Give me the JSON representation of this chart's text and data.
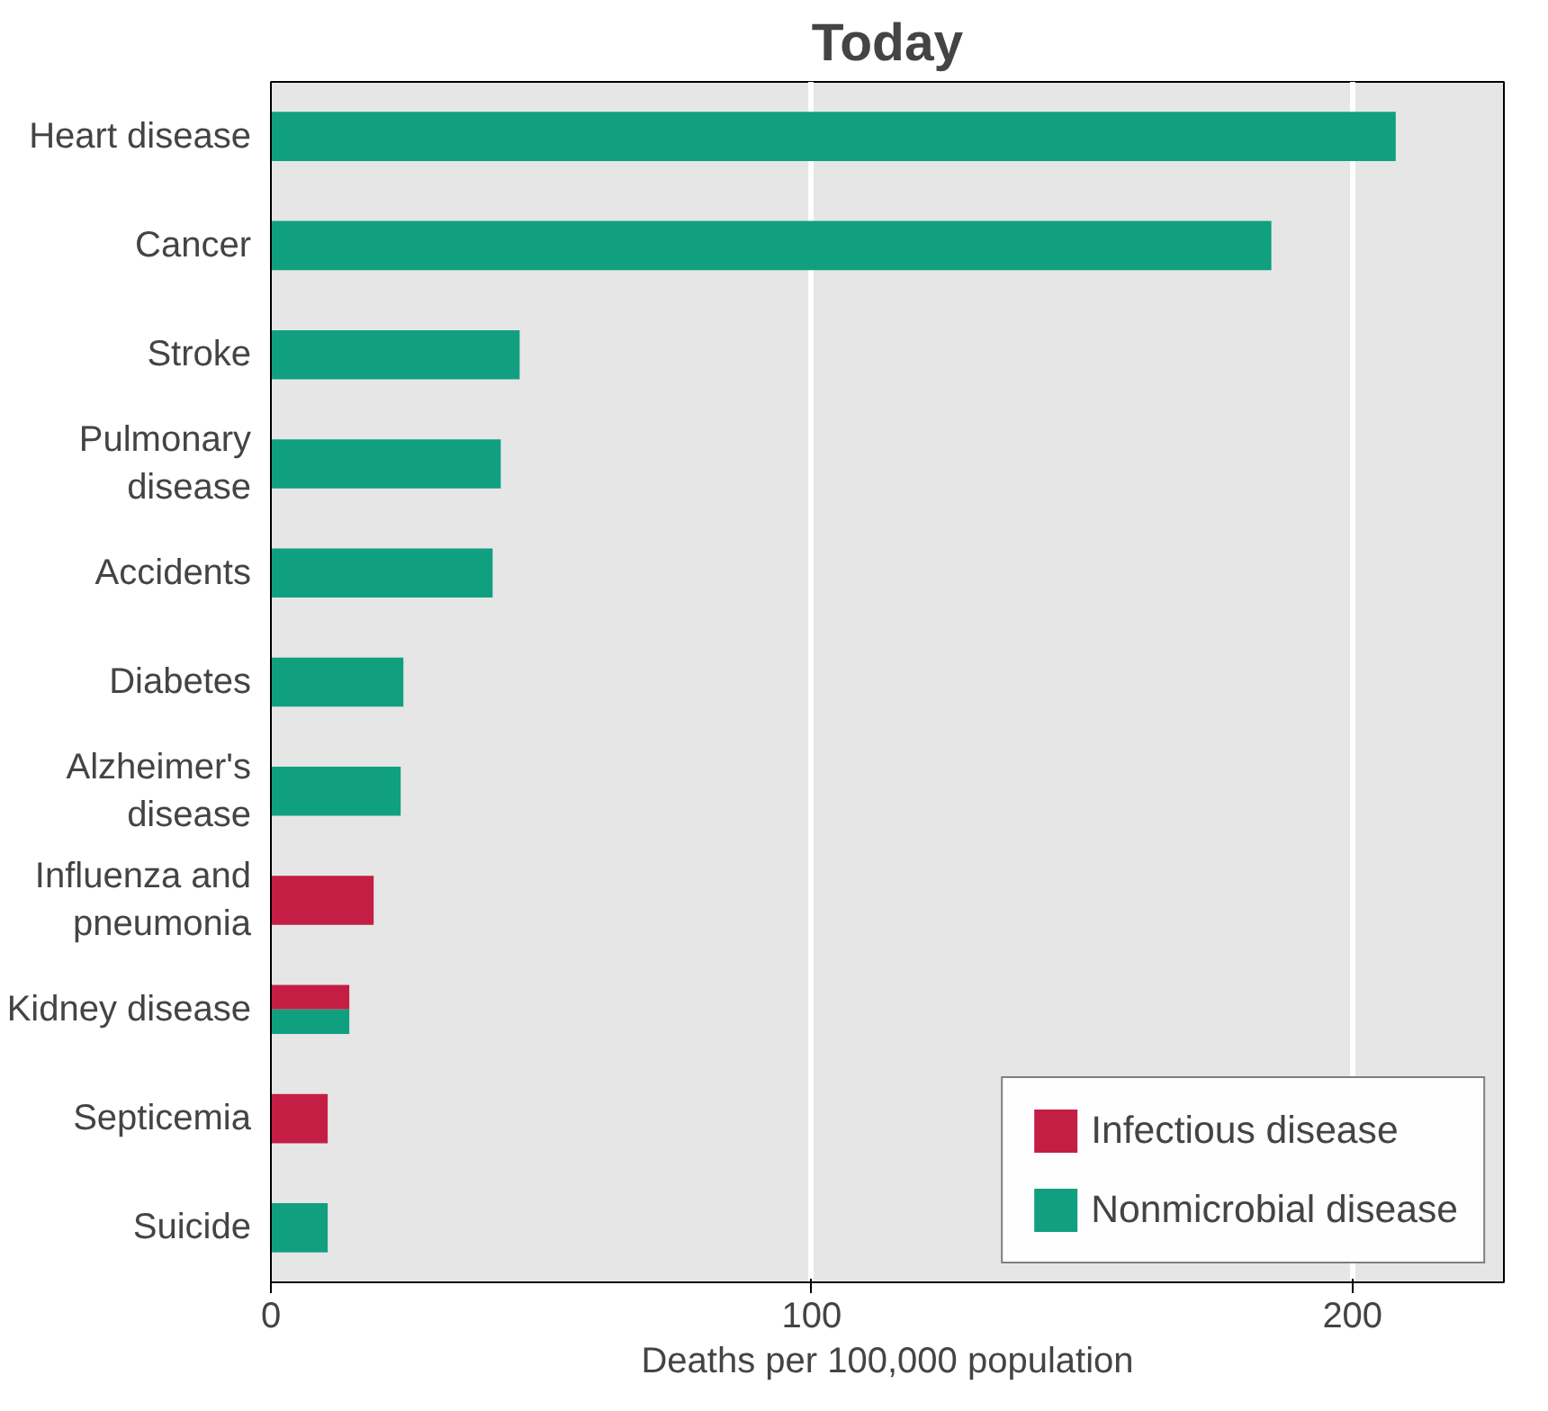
{
  "chart_data": {
    "type": "bar",
    "orientation": "horizontal",
    "title": "Today",
    "xlabel": "Deaths per 100,000 population",
    "categories": [
      "Heart disease",
      "Cancer",
      "Stroke",
      "Pulmonary\ndisease",
      "Accidents",
      "Diabetes",
      "Alzheimer's\ndisease",
      "Influenza and\npneumonia",
      "Kidney disease",
      "Septicemia",
      "Suicide"
    ],
    "series": [
      {
        "name": "Infectious disease",
        "color": "#c41e45",
        "values": [
          null,
          null,
          null,
          null,
          null,
          null,
          null,
          19,
          14.5,
          10.5,
          null
        ]
      },
      {
        "name": "Nonmicrobial disease",
        "color": "#10a080",
        "values": [
          208,
          185,
          46,
          42.5,
          41,
          24.5,
          24,
          null,
          14.5,
          null,
          10.5
        ]
      }
    ],
    "xlim": [
      0,
      228
    ],
    "xticks": [
      0,
      100,
      200
    ],
    "grid": "x",
    "legend": "bottom right"
  }
}
